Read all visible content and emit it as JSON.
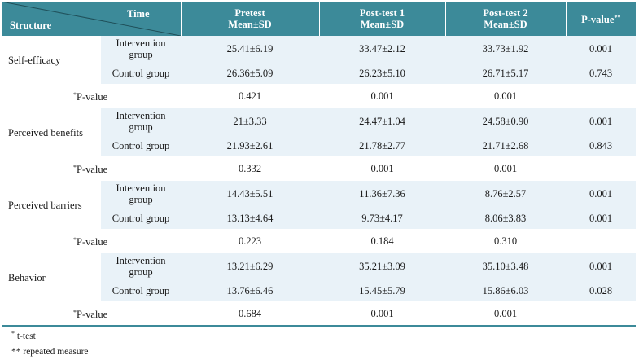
{
  "header": {
    "corner_time": "Time",
    "corner_structure": "Structure",
    "col_pretest": [
      "Pretest",
      "Mean±SD"
    ],
    "col_post1": [
      "Post-test 1",
      "Mean±SD"
    ],
    "col_post2": [
      "Post-test 2",
      "Mean±SD"
    ],
    "col_pvalue": "P-value",
    "col_pvalue_mark": "**"
  },
  "colors": {
    "header_bg": "#3c8a99",
    "row_shade": "#e9f2f8"
  },
  "sections": [
    {
      "structure": "Self-efficacy",
      "intervention": {
        "group": [
          "Intervention",
          "group"
        ],
        "pretest": "25.41±6.19",
        "post1": "33.47±2.12",
        "post2": "33.73±1.92",
        "p": "0.001"
      },
      "control": {
        "group": "Control group",
        "pretest": "26.36±5.09",
        "post1": "26.23±5.10",
        "post2": "26.71±5.17",
        "p": "0.743"
      },
      "pvalue_row": {
        "mark": "*",
        "label": "P-value",
        "pretest": "0.421",
        "post1": "0.001",
        "post2": "0.001"
      }
    },
    {
      "structure": "Perceived benefits",
      "intervention": {
        "group": [
          "Intervention",
          "group"
        ],
        "pretest": "21±3.33",
        "post1": "24.47±1.04",
        "post2": "24.58±0.90",
        "p": "0.001"
      },
      "control": {
        "group": "Control group",
        "pretest": "21.93±2.61",
        "post1": "21.78±2.77",
        "post2": "21.71±2.68",
        "p": "0.843"
      },
      "pvalue_row": {
        "mark": "*",
        "label": "P-value",
        "pretest": "0.332",
        "post1": "0.001",
        "post2": "0.001"
      }
    },
    {
      "structure": "Perceived barriers",
      "intervention": {
        "group": [
          "Intervention",
          "group"
        ],
        "pretest": "14.43±5.51",
        "post1": "11.36±7.36",
        "post2": "8.76±2.57",
        "p": "0.001"
      },
      "control": {
        "group": "Control group",
        "pretest": "13.13±4.64",
        "post1": "9.73±4.17",
        "post2": "8.06±3.83",
        "p": "0.001"
      },
      "pvalue_row": {
        "mark": "*",
        "label": "P-value",
        "pretest": "0.223",
        "post1": "0.184",
        "post2": "0.310"
      }
    },
    {
      "structure": "Behavior",
      "intervention": {
        "group": [
          "Intervention",
          "group"
        ],
        "pretest": "13.21±6.29",
        "post1": "35.21±3.09",
        "post2": "35.10±3.48",
        "p": "0.001"
      },
      "control": {
        "group": "Control group",
        "pretest": "13.76±6.46",
        "post1": "15.45±5.79",
        "post2": "15.86±6.03",
        "p": "0.028"
      },
      "pvalue_row": {
        "mark": "*",
        "label": "P-value",
        "pretest": "0.684",
        "post1": "0.001",
        "post2": "0.001"
      }
    }
  ],
  "footnotes": [
    {
      "mark": "*",
      "text": "t-test"
    },
    {
      "mark": "**",
      "text": "repeated measure"
    }
  ]
}
